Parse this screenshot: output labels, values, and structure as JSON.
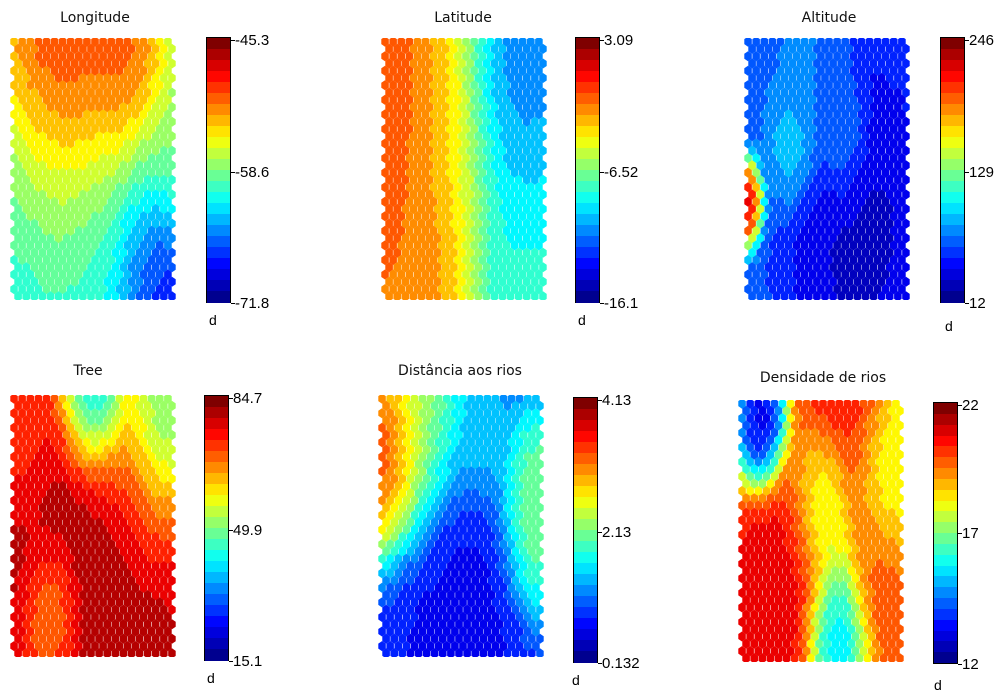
{
  "chart_data": [
    {
      "type": "heatmap",
      "title": "Longitude",
      "colorbar": {
        "min": -71.8,
        "max": -45.3,
        "tick_labels": [
          "-45.3",
          "-58.6",
          "-71.8"
        ],
        "unit_label": "d"
      },
      "blobs": [
        [
          0.3,
          0.1,
          1.0,
          0.18
        ],
        [
          0.65,
          0.1,
          0.9,
          0.15
        ],
        [
          0.2,
          0.3,
          0.75,
          0.2
        ],
        [
          0.5,
          0.45,
          0.7,
          0.25
        ],
        [
          0.1,
          0.6,
          0.35,
          0.18
        ],
        [
          0.5,
          0.75,
          0.3,
          0.2
        ],
        [
          0.85,
          0.85,
          0.05,
          0.15
        ],
        [
          0.95,
          0.45,
          0.55,
          0.12
        ]
      ],
      "base": 0.3
    },
    {
      "type": "heatmap",
      "title": "Latitude",
      "colorbar": {
        "min": -16.1,
        "max": 3.09,
        "tick_labels": [
          "3.09",
          "-6.52",
          "-16.1"
        ],
        "unit_label": "d"
      },
      "blobs": [
        [
          0.1,
          0.2,
          0.85,
          0.2
        ],
        [
          0.1,
          0.6,
          0.85,
          0.25
        ],
        [
          0.2,
          0.9,
          0.75,
          0.15
        ],
        [
          0.4,
          0.4,
          0.6,
          0.2
        ],
        [
          0.8,
          0.15,
          0.2,
          0.15
        ],
        [
          0.85,
          0.5,
          0.3,
          0.2
        ],
        [
          0.9,
          0.85,
          0.45,
          0.15
        ]
      ],
      "base": 0.4
    },
    {
      "type": "heatmap",
      "title": "Altitude",
      "colorbar": {
        "min": 12,
        "max": 246,
        "tick_labels": [
          "246",
          "129",
          "12"
        ],
        "unit_label": "d"
      },
      "blobs": [
        [
          0.0,
          0.63,
          1.0,
          0.05
        ],
        [
          0.3,
          0.4,
          0.35,
          0.08
        ],
        [
          0.6,
          0.4,
          0.3,
          0.08
        ],
        [
          0.4,
          0.1,
          0.25,
          0.12
        ],
        [
          0.7,
          0.75,
          0.05,
          0.2
        ]
      ],
      "base": 0.2
    },
    {
      "type": "heatmap",
      "title": "Tree",
      "colorbar": {
        "min": 15.1,
        "max": 84.7,
        "tick_labels": [
          "84.7",
          "49.9",
          "15.1"
        ],
        "unit_label": "d"
      },
      "blobs": [
        [
          0.5,
          0.0,
          0.05,
          0.12
        ],
        [
          0.9,
          0.1,
          0.3,
          0.12
        ],
        [
          0.2,
          0.45,
          1.0,
          0.2
        ],
        [
          0.6,
          0.6,
          1.0,
          0.25
        ],
        [
          0.25,
          0.8,
          0.6,
          0.1
        ],
        [
          0.8,
          0.3,
          0.7,
          0.15
        ],
        [
          0.1,
          0.2,
          0.75,
          0.12
        ]
      ],
      "base": 0.85
    },
    {
      "type": "heatmap",
      "title": "Distância aos rios",
      "colorbar": {
        "min": 0.132,
        "max": 4.13,
        "tick_labels": [
          "4.13",
          "2.13",
          "0.132"
        ],
        "unit_label": "d"
      },
      "blobs": [
        [
          0.05,
          0.2,
          0.95,
          0.12
        ],
        [
          0.25,
          0.1,
          0.55,
          0.15
        ],
        [
          0.95,
          0.45,
          0.55,
          0.12
        ],
        [
          0.6,
          0.15,
          0.35,
          0.1
        ],
        [
          0.5,
          0.8,
          0.1,
          0.2
        ]
      ],
      "base": 0.18
    },
    {
      "type": "heatmap",
      "title": "Densidade de rios",
      "colorbar": {
        "min": 12,
        "max": 22,
        "tick_labels": [
          "22",
          "17",
          "12"
        ],
        "unit_label": "d"
      },
      "blobs": [
        [
          0.15,
          0.1,
          0.0,
          0.08
        ],
        [
          0.6,
          0.15,
          0.9,
          0.15
        ],
        [
          0.5,
          0.4,
          0.3,
          0.1
        ],
        [
          0.4,
          0.5,
          0.9,
          0.12
        ],
        [
          0.2,
          0.75,
          0.95,
          0.15
        ],
        [
          0.6,
          0.85,
          0.25,
          0.1
        ],
        [
          0.85,
          0.65,
          0.85,
          0.12
        ],
        [
          0.9,
          0.35,
          0.55,
          0.12
        ]
      ],
      "base": 0.7
    }
  ],
  "colors": {
    "jet": [
      "#00008f",
      "#0000ff",
      "#007fff",
      "#00ffff",
      "#7fff7f",
      "#ffff00",
      "#ff7f00",
      "#ff0000",
      "#7f0000"
    ]
  }
}
